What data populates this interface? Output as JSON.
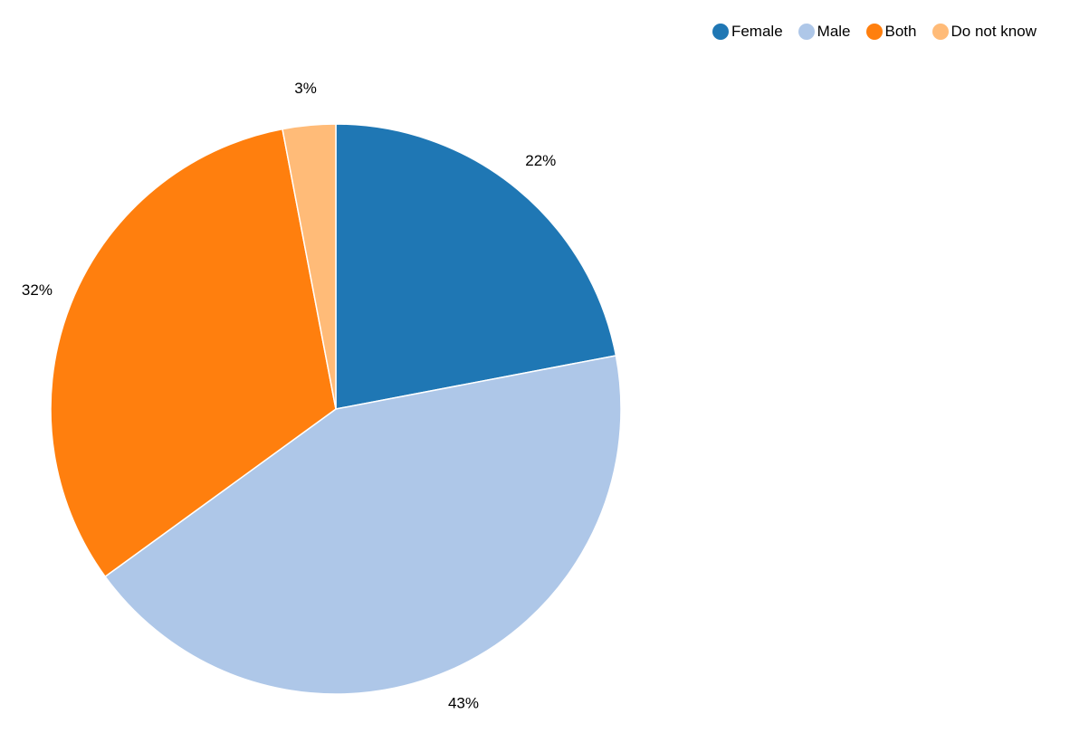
{
  "chart_data": {
    "type": "pie",
    "title": "",
    "slices": [
      {
        "label": "Female",
        "value": 22,
        "display": "22%",
        "color": "#1f77b4"
      },
      {
        "label": "Male",
        "value": 43,
        "display": "43%",
        "color": "#aec7e8"
      },
      {
        "label": "Both",
        "value": 32,
        "display": "32%",
        "color": "#ff7f0e"
      },
      {
        "label": "Do not know",
        "value": 3,
        "display": "3%",
        "color": "#ffbb78"
      }
    ],
    "legend_position": "top-right",
    "start": "top, clockwise"
  }
}
